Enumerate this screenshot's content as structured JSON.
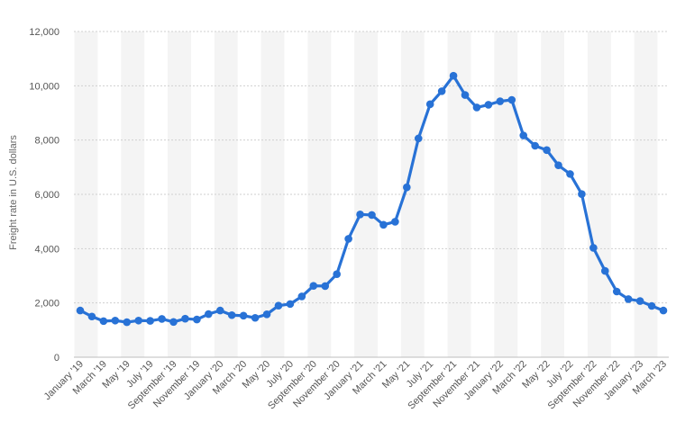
{
  "colors": {
    "line": "#2872d6",
    "band": "#f4f4f4",
    "grid": "#cfcfcf",
    "axis": "#bdbdbd",
    "text": "#555555"
  },
  "chart_data": {
    "type": "line",
    "ylabel": "Freight rate in U.S. dollars",
    "ylim": [
      0,
      12000
    ],
    "y_ticks": [
      "0",
      "2,000",
      "4,000",
      "6,000",
      "8,000",
      "10,000",
      "12,000"
    ],
    "grid": "horizontal dashed",
    "x_tick_labels": [
      "January '19",
      "March '19",
      "May '19",
      "July '19",
      "September '19",
      "November '19",
      "January '20",
      "March '20",
      "May '20",
      "July '20",
      "September '20",
      "November '20",
      "January '21",
      "March '21",
      "May '21",
      "July '21",
      "September '21",
      "November '21",
      "January '22",
      "March '22",
      "May '22",
      "July '22",
      "September '22",
      "November '22",
      "January '23",
      "March '23"
    ],
    "series": [
      {
        "values": [
          1720,
          1500,
          1330,
          1350,
          1290,
          1350,
          1340,
          1410,
          1300,
          1420,
          1390,
          1590,
          1720,
          1550,
          1530,
          1450,
          1580,
          1900,
          1960,
          2240,
          2630,
          2620,
          3060,
          4360,
          5260,
          5240,
          4880,
          4990,
          6260,
          8060,
          9320,
          9800,
          10370,
          9660,
          9200,
          9300,
          9430,
          9480,
          8170,
          7790,
          7630,
          7070,
          6750,
          6010,
          4030,
          3180,
          2420,
          2140,
          2070,
          1890,
          1720
        ]
      }
    ]
  }
}
